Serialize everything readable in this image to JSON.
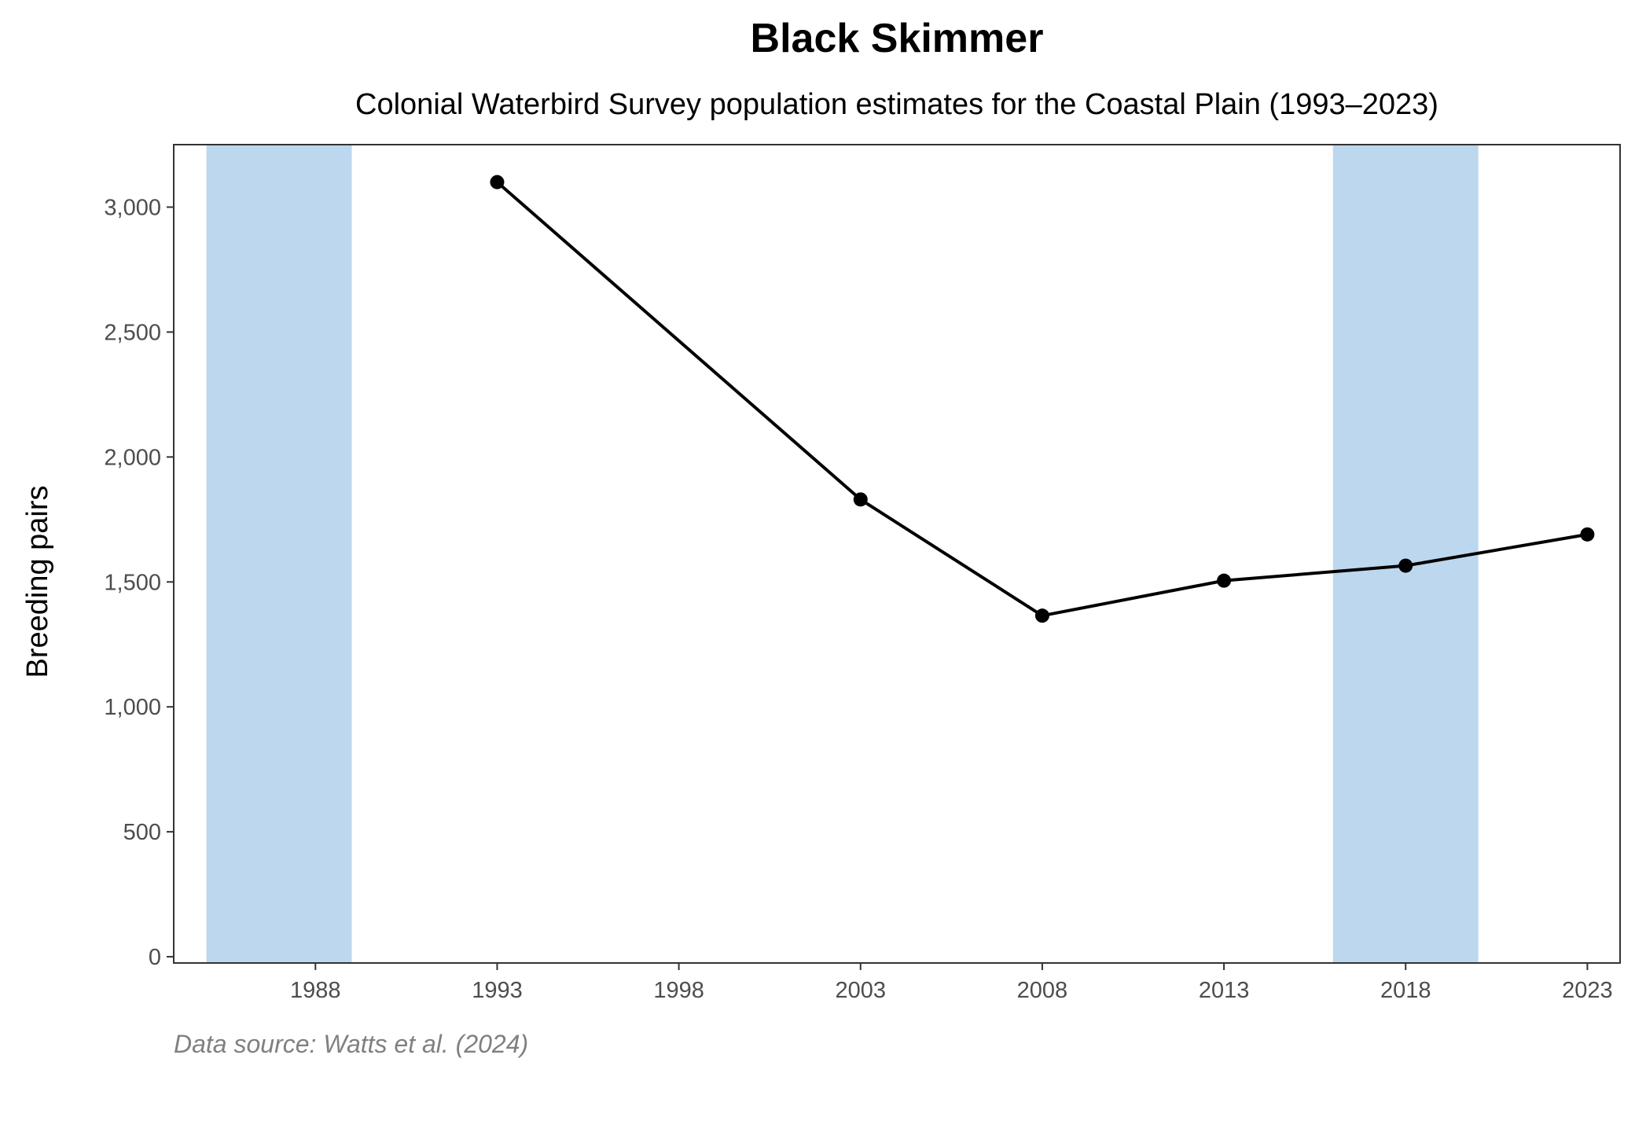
{
  "chart_data": {
    "type": "line",
    "title": "Black Skimmer",
    "subtitle": "Colonial Waterbird Survey population estimates for the Coastal Plain (1993–2023)",
    "xlabel": "",
    "ylabel": "Breeding pairs",
    "caption": "Data source: Watts et al. (2024)",
    "x": [
      1993,
      2003,
      2008,
      2013,
      2018,
      2023
    ],
    "series": [
      {
        "name": "Breeding pairs",
        "values": [
          3100,
          1830,
          1365,
          1505,
          1565,
          1690
        ]
      }
    ],
    "xlim": [
      1984.1,
      2023.9
    ],
    "ylim": [
      -25,
      3250
    ],
    "x_ticks": [
      1988,
      1993,
      1998,
      2003,
      2008,
      2013,
      2018,
      2023
    ],
    "y_ticks": [
      0,
      500,
      1000,
      1500,
      2000,
      2500,
      3000
    ],
    "y_tick_labels": [
      "0",
      "500",
      "1,000",
      "1,500",
      "2,000",
      "2,500",
      "3,000"
    ],
    "shaded_periods": [
      [
        1985,
        1989
      ],
      [
        2016,
        2020
      ]
    ],
    "grid": false,
    "colors": {
      "line": "#000000",
      "band": "#bdd7ee",
      "axis": "#333333",
      "caption": "#808080"
    }
  }
}
